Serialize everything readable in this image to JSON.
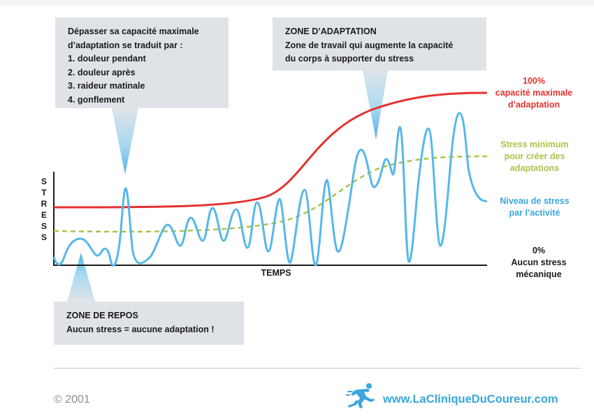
{
  "callouts": {
    "overload": {
      "intro_line1": "Dépasser sa capacité maximale",
      "intro_line2": "d’adaptation se traduit par :",
      "items": [
        "1.  douleur pendant",
        "2. douleur après",
        "3. raideur matinale",
        "4. gonflement"
      ]
    },
    "adaptation": {
      "title": "ZONE D’ADAPTATION",
      "line1": "Zone de travail qui augmente la capacité",
      "line2": "du corps à supporter du stress"
    },
    "rest": {
      "title": "ZONE DE REPOS",
      "text": "Aucun stress = aucune adaptation !"
    }
  },
  "legend": {
    "max_capacity": {
      "line1": "100%",
      "line2": "capacité maximale",
      "line3": "d’adaptation",
      "color": "#e3312f"
    },
    "min_stress": {
      "line1": "Stress minimum",
      "line2": "pour créer des",
      "line3": "adaptations",
      "color": "#a8c44a"
    },
    "activity_stress": {
      "line1": "Niveau de stress",
      "line2": "par l’activité",
      "color": "#3aa6dd"
    },
    "zero": {
      "line1": "0%",
      "line2": "Aucun stress",
      "line3": "mécanique",
      "color": "#1a1a1a"
    }
  },
  "axes": {
    "y_label_letters": [
      "S",
      "T",
      "R",
      "E",
      "S",
      "S"
    ],
    "x_label": "TEMPS"
  },
  "footer": {
    "copyright": "© 2001",
    "url": "www.LaCliniqueDuCoureur.com",
    "icon": "runner-icon"
  },
  "colors": {
    "callout_bg": "#dfe3e8",
    "callout_pointer": "#8ccfee",
    "axis": "#1a1a1a"
  }
}
